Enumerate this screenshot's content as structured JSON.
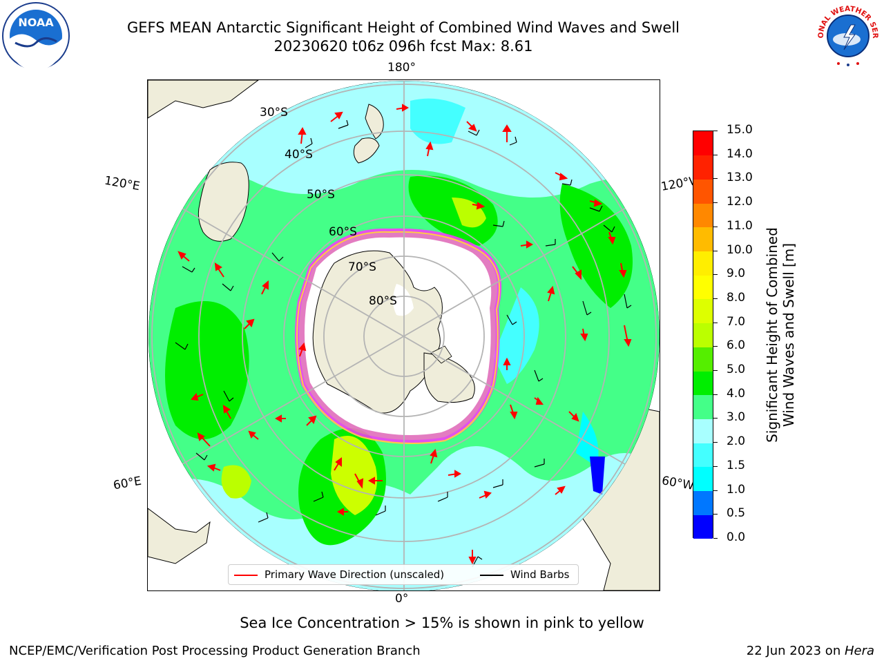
{
  "title": {
    "line1": "GEFS MEAN Antarctic Significant Height of Combined Wind Waves and Swell",
    "line2": "20230620 t06z 096h fcst   Max: 8.61"
  },
  "logos": {
    "left": "noaa-logo",
    "left_text": "NOAA",
    "right": "nws-logo",
    "right_text": "NATIONAL WEATHER SERVICE"
  },
  "map": {
    "projection": "south-polar-stereographic",
    "longitude_labels": {
      "top": "180°",
      "bottom": "0°",
      "left_upper": "120°E",
      "left_lower": "60°E",
      "right_upper": "120°W",
      "right_lower": "60°W"
    },
    "latitude_labels": [
      "30°S",
      "40°S",
      "50°S",
      "60°S",
      "70°S",
      "80°S"
    ],
    "colors": {
      "land": "#efedda",
      "ice_shelf": "#ffffff",
      "coast": "#000000",
      "grid": "#b4b4b4",
      "sea_ice_edge": [
        "#ff33ff",
        "#ff66cc",
        "#ffcc44"
      ]
    }
  },
  "colorbar": {
    "label_line1": "Significant Height of Combined",
    "label_line2": "Wind Waves and Swell [m]",
    "ticks": [
      "0.0",
      "0.5",
      "1.0",
      "1.5",
      "2.0",
      "3.0",
      "4.0",
      "5.0",
      "6.0",
      "7.0",
      "8.0",
      "9.0",
      "10.0",
      "11.0",
      "12.0",
      "13.0",
      "14.0",
      "15.0"
    ],
    "colors": [
      "#0000ff",
      "#0077ff",
      "#00ffff",
      "#44ffff",
      "#a8ffff",
      "#44ff88",
      "#00ee00",
      "#55ee00",
      "#bbff00",
      "#ddff00",
      "#ffff00",
      "#ffee00",
      "#ffbb00",
      "#ff8800",
      "#ff5500",
      "#ff2200",
      "#ff0000"
    ]
  },
  "legend": {
    "wave_direction": "Primary Wave Direction (unscaled)",
    "wave_color": "#ff0000",
    "wind_barbs": "Wind Barbs",
    "wind_color": "#000000"
  },
  "ice_note": "Sea Ice Concentration > 15% is shown in pink to yellow",
  "footer": {
    "left": "NCEP/EMC/Verification Post Processing Product Generation Branch",
    "right_date": "22 Jun 2023 on ",
    "right_host": "Hera"
  }
}
